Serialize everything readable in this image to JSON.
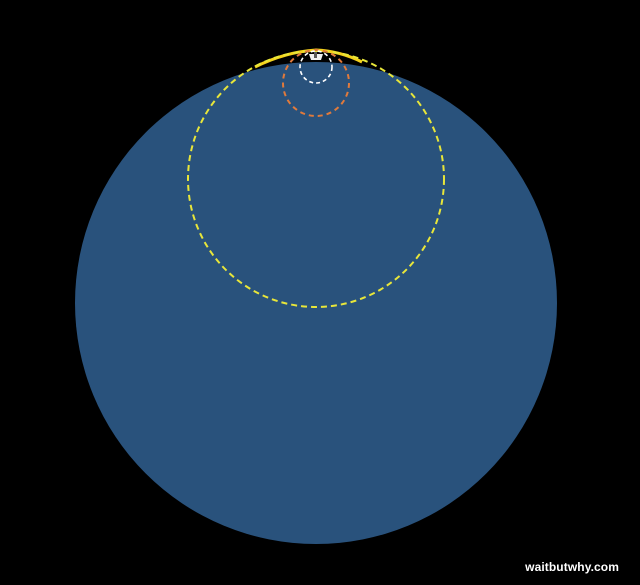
{
  "watermark": {
    "text": "waitbutwhy.com"
  },
  "colors": {
    "background": "#000000",
    "earth_fill": "#29527c",
    "sun_circle_stroke": "#e8e63a",
    "sun_cap": "#f4d21c",
    "orange_circle_stroke": "#e07a3c",
    "white_circle_stroke": "#ffffff",
    "small_body_fill": "#f0f0f0",
    "small_body_dark": "#5a5a5a"
  },
  "icons": {
    "large_circle": "large-blue-circle",
    "yellow_circle": "yellow-dashed-circle",
    "orange_circle": "orange-dashed-circle",
    "white_circle": "white-dashed-circle",
    "tiny_body": "tiny-grey-body",
    "cap_arc": "yellow-cap-arc"
  }
}
